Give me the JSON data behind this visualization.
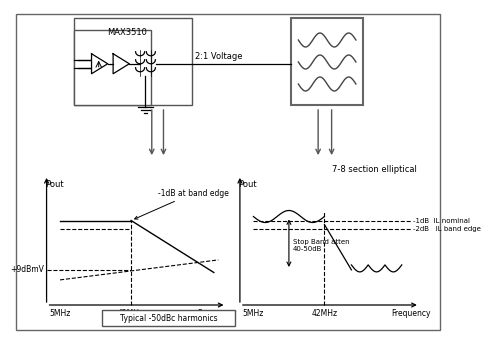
{
  "bg_color": "#ffffff",
  "border_color": "#888888",
  "max3510_label": "MAX3510",
  "voltage_label": "2:1 Voltage",
  "section_label": "7-8 section elliptical",
  "typical_text": "Typical -50dBc harmonics",
  "left_graph": {
    "pout_label": "Pout",
    "x_labels": [
      "5MHz",
      "42MHz",
      "Frequency"
    ],
    "flat_label": "-1dB at band edge",
    "ref_label": "+9dBmV"
  },
  "right_graph": {
    "pout_label": "Pout",
    "x_labels": [
      "5MHz",
      "42MHz",
      "Frequency"
    ],
    "stop_band_label": "Stop Band atten\n40-50dB",
    "nominal_label": "-1dB  IL nominal",
    "band_edge_label": "-2dB   IL band edge"
  }
}
